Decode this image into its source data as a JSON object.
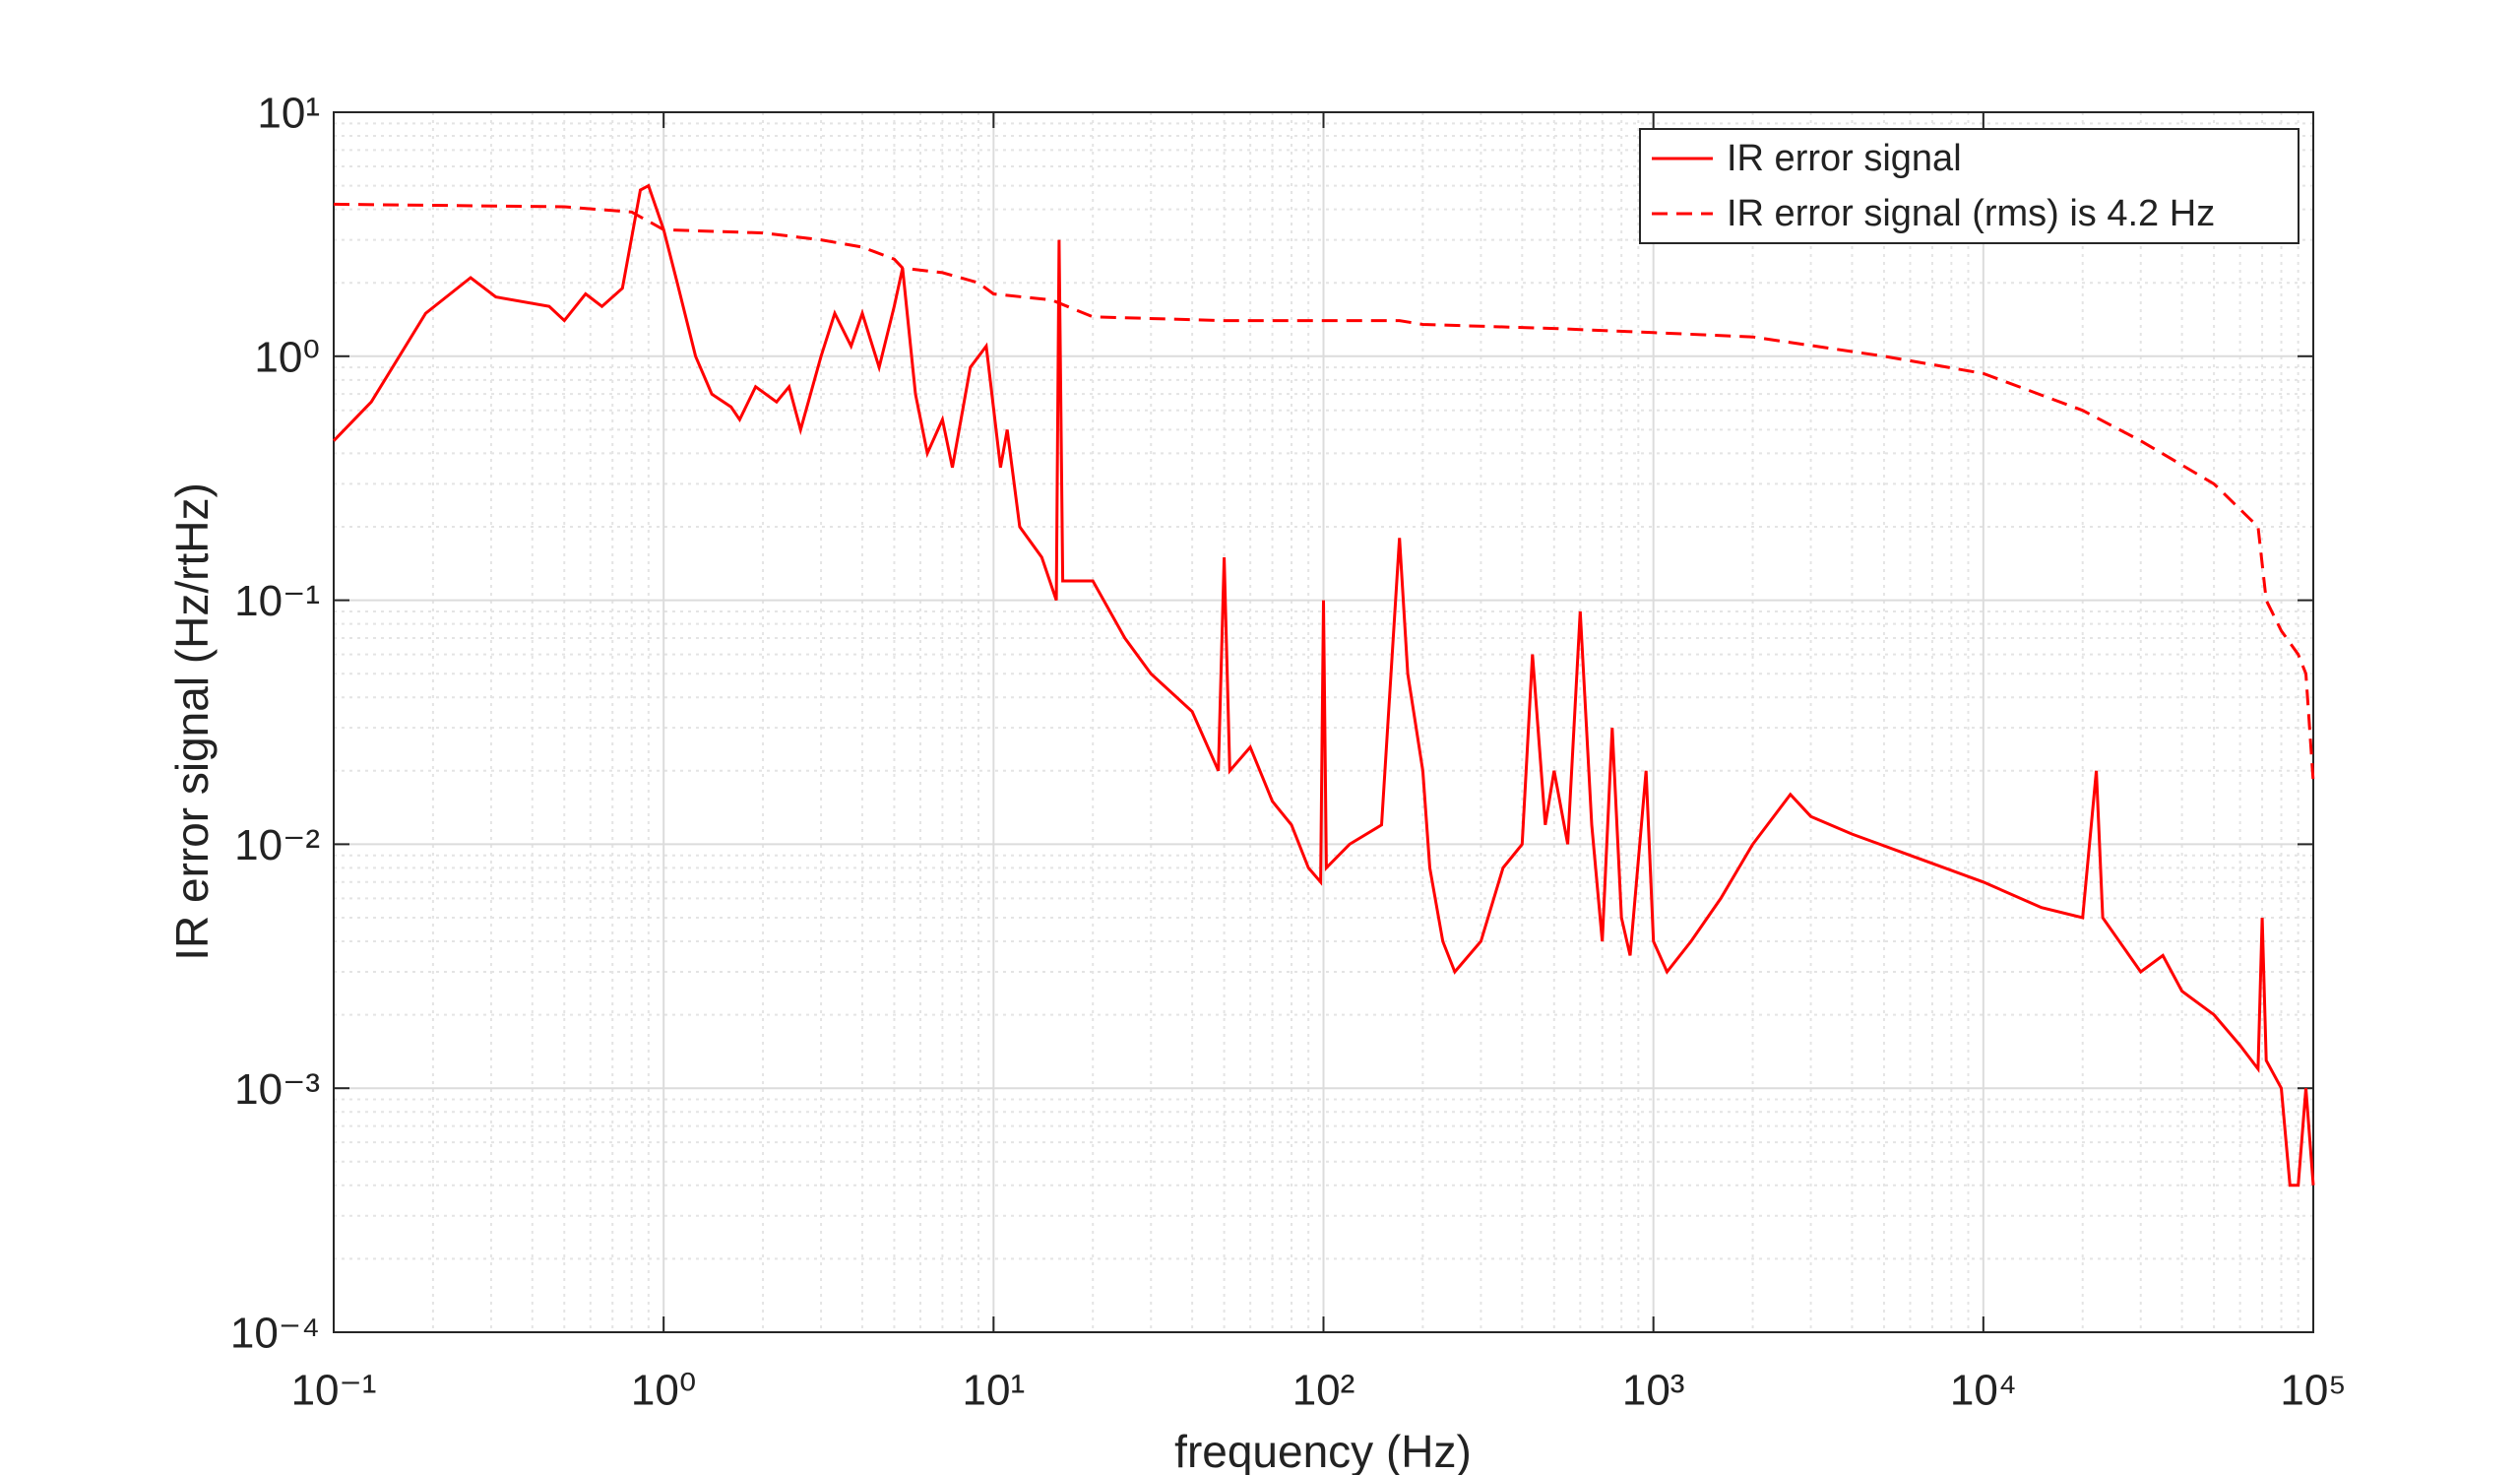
{
  "chart_data": {
    "type": "line",
    "xlabel": "frequency (Hz)",
    "ylabel": "IR error signal (Hz/rtHz)",
    "xscale": "log",
    "yscale": "log",
    "grid": true,
    "minor_grid": true,
    "legend": "upper right",
    "xlim": [
      0.1,
      100000
    ],
    "ylim": [
      0.0001,
      10
    ],
    "xticks": [
      {
        "value": 0.1,
        "label": "10⁻¹"
      },
      {
        "value": 1,
        "label": "10⁰"
      },
      {
        "value": 10,
        "label": "10¹"
      },
      {
        "value": 100,
        "label": "10²"
      },
      {
        "value": 1000,
        "label": "10³"
      },
      {
        "value": 10000,
        "label": "10⁴"
      },
      {
        "value": 100000,
        "label": "10⁵"
      }
    ],
    "yticks": [
      {
        "value": 0.0001,
        "label": "10⁻⁴"
      },
      {
        "value": 0.001,
        "label": "10⁻³"
      },
      {
        "value": 0.01,
        "label": "10⁻²"
      },
      {
        "value": 0.1,
        "label": "10⁻¹"
      },
      {
        "value": 1,
        "label": "10⁰"
      },
      {
        "value": 10,
        "label": "10¹"
      }
    ],
    "series": [
      {
        "name": "IR error signal",
        "color": "#ff0000",
        "style": "solid",
        "x": [
          0.1,
          0.13,
          0.19,
          0.26,
          0.31,
          0.45,
          0.5,
          0.58,
          0.65,
          0.75,
          0.85,
          0.9,
          1.0,
          1.1,
          1.25,
          1.4,
          1.6,
          1.7,
          1.9,
          2.2,
          2.4,
          2.6,
          3.0,
          3.3,
          3.7,
          4.0,
          4.5,
          5.0,
          5.3,
          5.8,
          6.3,
          7.0,
          7.5,
          8.5,
          9.5,
          10.5,
          11,
          12,
          14,
          15.5,
          15.8,
          16.2,
          20,
          25,
          30,
          40,
          48,
          50,
          52,
          60,
          70,
          80,
          90,
          98,
          100,
          102,
          120,
          150,
          170,
          180,
          200,
          210,
          230,
          250,
          300,
          350,
          400,
          430,
          470,
          500,
          550,
          600,
          650,
          700,
          750,
          800,
          850,
          950,
          1000,
          1100,
          1300,
          1600,
          2000,
          2600,
          3000,
          4000,
          6000,
          10000,
          15000,
          20000,
          22000,
          23000,
          30000,
          35000,
          40000,
          50000,
          60000,
          68000,
          70000,
          72000,
          80000,
          85000,
          90000,
          95000,
          100000
        ],
        "values": [
          0.45,
          0.65,
          1.5,
          2.1,
          1.75,
          1.6,
          1.4,
          1.8,
          1.6,
          1.9,
          4.8,
          5.0,
          3.3,
          2.0,
          1.0,
          0.7,
          0.62,
          0.55,
          0.75,
          0.65,
          0.75,
          0.5,
          1.0,
          1.5,
          1.1,
          1.5,
          0.9,
          1.6,
          2.3,
          0.7,
          0.4,
          0.55,
          0.35,
          0.9,
          1.1,
          0.35,
          0.5,
          0.2,
          0.15,
          0.1,
          3.0,
          0.12,
          0.12,
          0.07,
          0.05,
          0.035,
          0.02,
          0.15,
          0.02,
          0.025,
          0.015,
          0.012,
          0.008,
          0.007,
          0.1,
          0.008,
          0.01,
          0.012,
          0.18,
          0.05,
          0.02,
          0.008,
          0.004,
          0.003,
          0.004,
          0.008,
          0.01,
          0.06,
          0.012,
          0.02,
          0.01,
          0.09,
          0.012,
          0.004,
          0.03,
          0.005,
          0.0035,
          0.02,
          0.004,
          0.003,
          0.004,
          0.006,
          0.01,
          0.016,
          0.013,
          0.011,
          0.009,
          0.007,
          0.0055,
          0.005,
          0.02,
          0.005,
          0.003,
          0.0035,
          0.0025,
          0.002,
          0.0015,
          0.0012,
          0.005,
          0.0013,
          0.001,
          0.0004,
          0.0004,
          0.001,
          0.0004
        ]
      },
      {
        "name": "IR error signal (rms) is 4.2 Hz",
        "color": "#ff0000",
        "style": "dashed",
        "x": [
          0.1,
          0.5,
          0.8,
          1.0,
          2,
          3,
          4,
          5,
          5.3,
          7,
          9,
          10,
          15,
          20,
          50,
          100,
          170,
          200,
          500,
          1000,
          2000,
          5000,
          10000,
          20000,
          30000,
          50000,
          68000,
          72000,
          80000,
          90000,
          95000,
          100000
        ],
        "values": [
          4.2,
          4.1,
          3.9,
          3.3,
          3.2,
          3.0,
          2.8,
          2.5,
          2.3,
          2.2,
          2.0,
          1.8,
          1.7,
          1.45,
          1.4,
          1.4,
          1.4,
          1.35,
          1.3,
          1.25,
          1.2,
          1.0,
          0.85,
          0.6,
          0.45,
          0.3,
          0.2,
          0.1,
          0.075,
          0.06,
          0.05,
          0.018
        ]
      }
    ]
  }
}
